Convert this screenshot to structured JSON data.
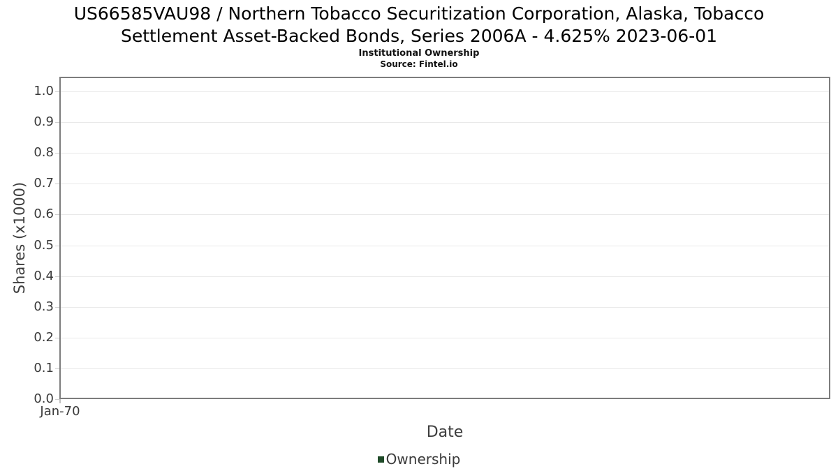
{
  "header": {
    "title_line1": "US66585VAU98 / Northern Tobacco Securitization Corporation, Alaska, Tobacco",
    "title_line2": "Settlement Asset-Backed Bonds, Series 2006A - 4.625% 2023-06-01",
    "subtitle": "Institutional Ownership",
    "source": "Source: Fintel.io"
  },
  "chart_data": {
    "type": "line",
    "title": "US66585VAU98 / Northern Tobacco Securitization Corporation, Alaska, Tobacco Settlement Asset-Backed Bonds, Series 2006A - 4.625% 2023-06-01",
    "subtitle": "Institutional Ownership",
    "source": "Source: Fintel.io",
    "xlabel": "Date",
    "ylabel": "Shares (x1000)",
    "x_tick_labels": [
      "Jan-70"
    ],
    "y_tick_labels": [
      "1.0",
      "0.9",
      "0.8",
      "0.7",
      "0.6",
      "0.5",
      "0.4",
      "0.3",
      "0.2",
      "0.1",
      "0.0"
    ],
    "ylim": [
      0.0,
      1.05
    ],
    "grid": true,
    "legend_position": "bottom",
    "series": [
      {
        "name": "Ownership",
        "color": "#1f4a28",
        "points": []
      }
    ]
  },
  "legend": {
    "items": [
      {
        "label": "Ownership",
        "color": "#1f4a28"
      }
    ]
  },
  "colors": {
    "background": "#ffffff",
    "title_text": "#000000",
    "axis_text": "#3a3a3a",
    "plot_border": "#7d7d7d",
    "gridline": "#e9e9e9",
    "legend_marker": "#1f4a28"
  }
}
